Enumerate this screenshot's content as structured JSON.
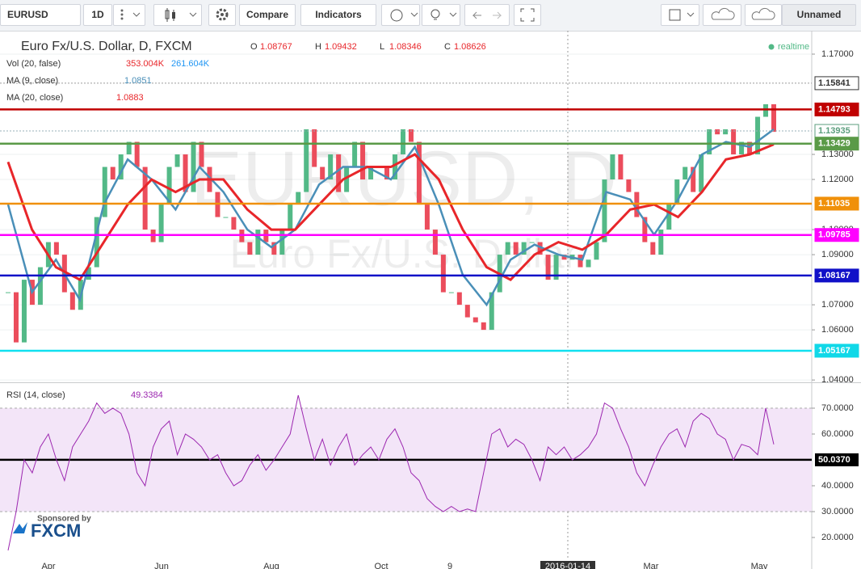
{
  "toolbar": {
    "symbol": "EURUSD",
    "interval": "1D",
    "compare": "Compare",
    "indicators": "Indicators",
    "layout": "Unnamed"
  },
  "sponsor": {
    "text": "Sponsored by",
    "brand": "FXCM"
  },
  "xlabels": [
    "Apr",
    "Jun",
    "Aug",
    "Oct",
    "9",
    "2016-01-14",
    "Mar",
    "May"
  ],
  "chart_data": [
    {
      "type": "candlestick",
      "title": "Euro Fx/U.S. Dollar, D, FXCM",
      "watermark_symbol": "EURUSD, D",
      "watermark_name": "Euro Fx/U.S. Dollar",
      "ohlc": [
        [
          "O",
          "1.08767"
        ],
        [
          "H",
          "1.09432"
        ],
        [
          "L",
          "1.08346"
        ],
        [
          "C",
          "1.08626"
        ]
      ],
      "status": "realtime",
      "volume": {
        "name": "Vol (20, false)",
        "labels": [
          "353.004K",
          "261.604K"
        ]
      },
      "up_color": "#53b987",
      "down_color": "#eb4d5c",
      "values": [
        1.075,
        1.055,
        1.08,
        1.07,
        1.085,
        1.095,
        1.09,
        1.075,
        1.068,
        1.08,
        1.085,
        1.105,
        1.125,
        1.12,
        1.13,
        1.135,
        1.125,
        1.1,
        1.095,
        1.11,
        1.125,
        1.13,
        1.115,
        1.135,
        1.125,
        1.115,
        1.105,
        1.105,
        1.1,
        1.095,
        1.09,
        1.1,
        1.095,
        1.09,
        1.1,
        1.11,
        1.115,
        1.14,
        1.125,
        1.12,
        1.13,
        1.115,
        1.125,
        1.135,
        1.12,
        1.125,
        1.125,
        1.12,
        1.13,
        1.14,
        1.135,
        1.11,
        1.1,
        1.09,
        1.075,
        1.075,
        1.07,
        1.065,
        1.063,
        1.06,
        1.075,
        1.09,
        1.095,
        1.09,
        1.095,
        1.095,
        1.09,
        1.08,
        1.09,
        1.088,
        1.09,
        1.085,
        1.088,
        1.095,
        1.12,
        1.13,
        1.12,
        1.115,
        1.105,
        1.095,
        1.09,
        1.1,
        1.11,
        1.12,
        1.125,
        1.115,
        1.13,
        1.14,
        1.138,
        1.14,
        1.13,
        1.135,
        1.13,
        1.145,
        1.15,
        1.139
      ],
      "series": [
        {
          "name": "MA (9, close)",
          "legend_value": "1.0851",
          "color": "#4a8fb8",
          "values": [
            1.11,
            1.075,
            1.088,
            1.072,
            1.11,
            1.128,
            1.12,
            1.108,
            1.125,
            1.115,
            1.1,
            1.093,
            1.1,
            1.118,
            1.125,
            1.125,
            1.12,
            1.133,
            1.11,
            1.082,
            1.07,
            1.088,
            1.094,
            1.09,
            1.088,
            1.115,
            1.112,
            1.098,
            1.112,
            1.13,
            1.135,
            1.133,
            1.14
          ]
        },
        {
          "name": "MA (20, close)",
          "legend_value": "1.0883",
          "color": "#e8262a",
          "values": [
            1.127,
            1.1,
            1.085,
            1.08,
            1.095,
            1.11,
            1.12,
            1.115,
            1.12,
            1.12,
            1.108,
            1.1,
            1.1,
            1.11,
            1.12,
            1.125,
            1.125,
            1.13,
            1.12,
            1.1,
            1.085,
            1.08,
            1.09,
            1.095,
            1.092,
            1.098,
            1.108,
            1.11,
            1.105,
            1.115,
            1.128,
            1.13,
            1.134
          ]
        }
      ],
      "levels": [
        {
          "value": 1.15841,
          "color": "#9e9e9e",
          "label_color": "#333333",
          "dashed": true
        },
        {
          "value": 1.14793,
          "color": "#c00000",
          "label_color": "#c00000",
          "dashed": false
        },
        {
          "value": 1.13935,
          "color": "#9ab0b8",
          "label_color": "#5b9e7d",
          "dashed": true
        },
        {
          "value": 1.13429,
          "color": "#5a9a47",
          "label_color": "#5a9a47",
          "dashed": false
        },
        {
          "value": 1.11035,
          "color": "#f0900a",
          "label_color": "#f0900a",
          "dashed": false
        },
        {
          "value": 1.09785,
          "color": "#ff00ff",
          "label_color": "#ff00ff",
          "dashed": false
        },
        {
          "value": 1.08167,
          "color": "#1010c8",
          "label_color": "#1010c8",
          "dashed": false
        },
        {
          "value": 1.05167,
          "color": "#10e0f0",
          "label_color": "#10d8e8",
          "dashed": false
        }
      ],
      "ylim": [
        1.0394,
        1.1787
      ],
      "yticks": [
        {
          "value": 1.17,
          "label": "1.17000"
        },
        {
          "value": 1.13,
          "label": "1.13000"
        },
        {
          "value": 1.12,
          "label": "1.12000"
        },
        {
          "value": 1.1,
          "label": "1.10000"
        },
        {
          "value": 1.09,
          "label": "1.09000"
        },
        {
          "value": 1.07,
          "label": "1.07000"
        },
        {
          "value": 1.06,
          "label": "1.06000"
        },
        {
          "value": 1.04,
          "label": "1.04000"
        }
      ],
      "grid": true
    },
    {
      "type": "line",
      "name": "RSI (14, close)",
      "legend_value": "49.3384",
      "color": "#9c27b0",
      "values": [
        15,
        30,
        50,
        45,
        55,
        60,
        50,
        42,
        55,
        60,
        65,
        72,
        68,
        70,
        68,
        60,
        45,
        40,
        55,
        62,
        65,
        52,
        60,
        58,
        55,
        50,
        52,
        45,
        40,
        42,
        48,
        52,
        46,
        50,
        55,
        60,
        75,
        62,
        50,
        58,
        48,
        55,
        60,
        48,
        52,
        55,
        50,
        58,
        62,
        55,
        45,
        42,
        35,
        32,
        30,
        32,
        30,
        31,
        30,
        45,
        60,
        62,
        55,
        58,
        56,
        50,
        42,
        55,
        52,
        55,
        50,
        52,
        55,
        60,
        72,
        70,
        62,
        55,
        45,
        40,
        48,
        55,
        60,
        62,
        55,
        65,
        68,
        66,
        60,
        58,
        50,
        56,
        55,
        52,
        70,
        56
      ],
      "band": [
        30,
        70
      ],
      "band_color": "#f3e5f8",
      "midline": {
        "value": 50.037,
        "label": "50.0370"
      },
      "ylim": [
        11.56,
        79.38
      ],
      "yticks": [
        {
          "value": 70,
          "label": "70.0000"
        },
        {
          "value": 60,
          "label": "60.0000"
        },
        {
          "value": 40,
          "label": "40.0000"
        },
        {
          "value": 30,
          "label": "30.0000"
        },
        {
          "value": 20,
          "label": "20.0000"
        }
      ],
      "grid": true
    }
  ]
}
